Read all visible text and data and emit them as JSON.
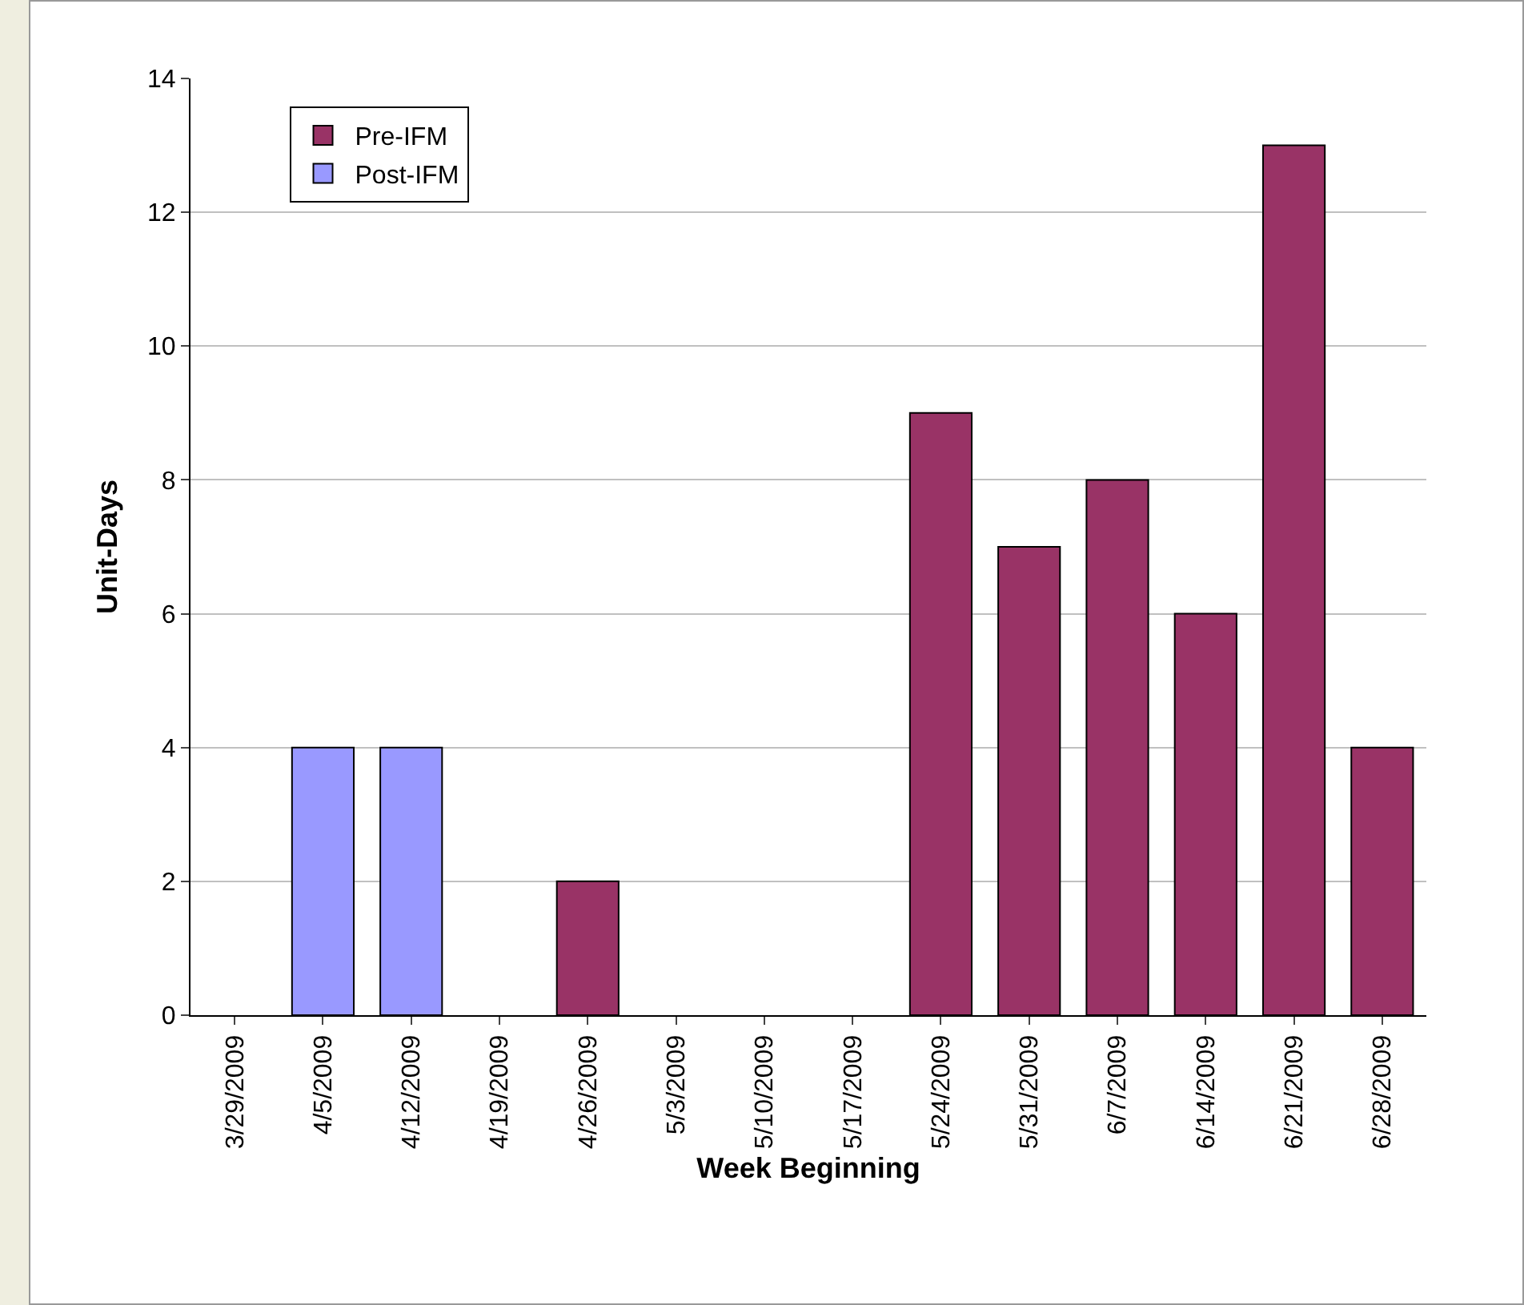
{
  "chart_data": {
    "type": "bar",
    "xlabel": "Week Beginning",
    "ylabel": "Unit-Days",
    "categories": [
      "3/29/2009",
      "4/5/2009",
      "4/12/2009",
      "4/19/2009",
      "4/26/2009",
      "5/3/2009",
      "5/10/2009",
      "5/17/2009",
      "5/24/2009",
      "5/31/2009",
      "6/7/2009",
      "6/14/2009",
      "6/21/2009",
      "6/28/2009"
    ],
    "series": [
      {
        "name": "Pre-IFM",
        "color": "#993366",
        "values": [
          null,
          null,
          null,
          null,
          2,
          null,
          null,
          null,
          9,
          7,
          8,
          6,
          13,
          4
        ]
      },
      {
        "name": "Post-IFM",
        "color": "#9999ff",
        "values": [
          null,
          4,
          4,
          null,
          null,
          null,
          null,
          null,
          null,
          null,
          null,
          null,
          null,
          null
        ]
      }
    ],
    "ylim": [
      0,
      14
    ],
    "yticks": [
      0,
      2,
      4,
      6,
      8,
      10,
      12,
      14
    ],
    "grid": "y",
    "legend": "top left"
  }
}
